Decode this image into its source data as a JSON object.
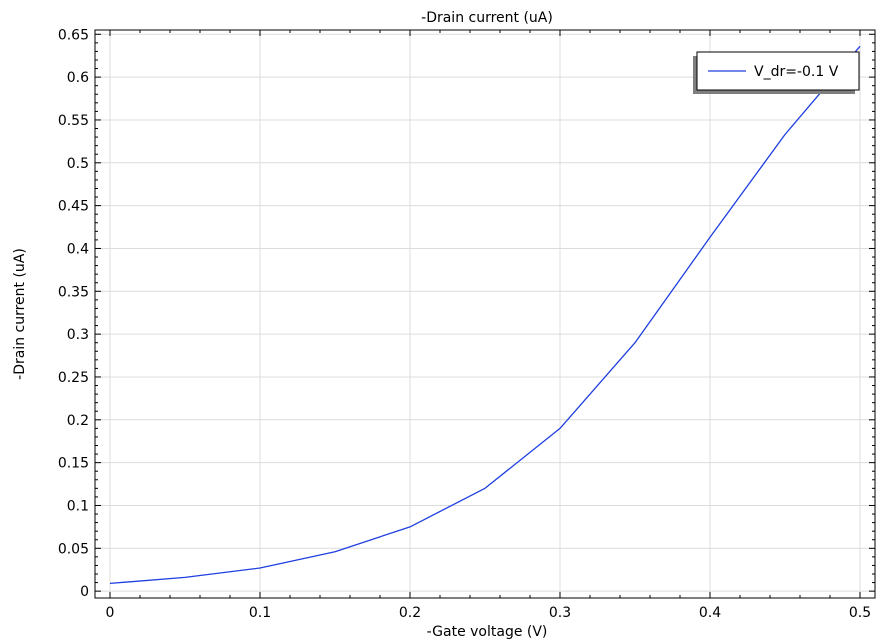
{
  "chart_data": {
    "type": "line",
    "title": "-Drain current (uA)",
    "xlabel": "-Gate voltage (V)",
    "ylabel": "-Drain current (uA)",
    "xlim": [
      -0.01,
      0.51
    ],
    "ylim": [
      -0.008,
      0.655
    ],
    "xticks": [
      0,
      0.1,
      0.2,
      0.3,
      0.4,
      0.5
    ],
    "xtick_labels": [
      "0",
      "0.1",
      "0.2",
      "0.3",
      "0.4",
      "0.5"
    ],
    "yticks": [
      0,
      0.05,
      0.1,
      0.15,
      0.2,
      0.25,
      0.3,
      0.35,
      0.4,
      0.45,
      0.5,
      0.55,
      0.6,
      0.65
    ],
    "ytick_labels": [
      "0",
      "0.05",
      "0.1",
      "0.15",
      "0.2",
      "0.25",
      "0.3",
      "0.35",
      "0.4",
      "0.45",
      "0.5",
      "0.55",
      "0.6",
      "0.65"
    ],
    "grid": true,
    "legend_position": "top-right",
    "series": [
      {
        "name": "V_dr=-0.1 V",
        "color": "#1f3fe0",
        "x": [
          0,
          0.05,
          0.1,
          0.15,
          0.2,
          0.25,
          0.3,
          0.35,
          0.4,
          0.45,
          0.5
        ],
        "y": [
          0.009,
          0.016,
          0.027,
          0.046,
          0.075,
          0.12,
          0.19,
          0.29,
          0.413,
          0.533,
          0.636
        ]
      }
    ]
  }
}
